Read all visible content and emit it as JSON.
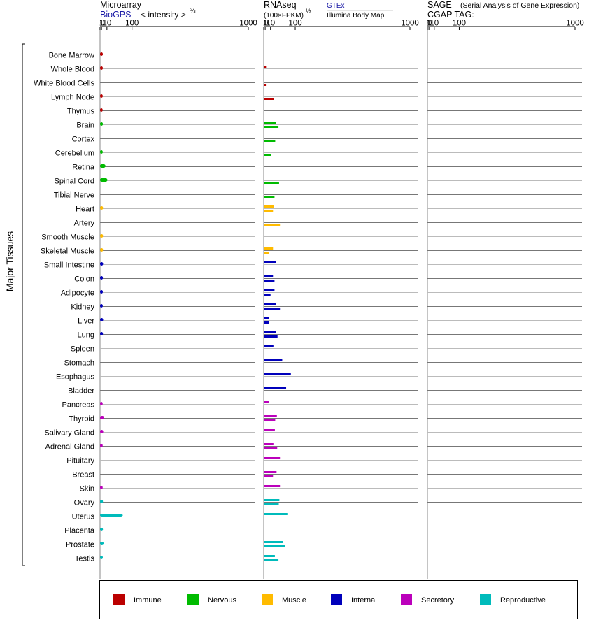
{
  "panels": {
    "microarray": {
      "title": "Microarray",
      "source": "BioGPS",
      "source_color": "#1a1aa6",
      "unit": "< intensity >",
      "exponent": "⅔"
    },
    "rnaseq": {
      "title": "RNAseq",
      "unit": "(100×FPKM)",
      "exponent": "½",
      "source_a": "GTEx",
      "source_a_color": "#1a1aa6",
      "source_b": "Illumina Body Map"
    },
    "sage": {
      "title": "SAGE",
      "subtitle": "(Serial Analysis of Gene Expression)",
      "tag_label": "CGAP TAG:",
      "tag_value": "--"
    }
  },
  "group_label": "Major Tissues",
  "colors": {
    "Immune": "#bb0000",
    "Nervous": "#00bb00",
    "Muscle": "#ffbb00",
    "Internal": "#0000bb",
    "Secretory": "#bb00bb",
    "Reproductive": "#00bbbb"
  },
  "legend": [
    {
      "key": "Immune",
      "label": "Immune"
    },
    {
      "key": "Nervous",
      "label": "Nervous"
    },
    {
      "key": "Muscle",
      "label": "Muscle"
    },
    {
      "key": "Internal",
      "label": "Internal"
    },
    {
      "key": "Secretory",
      "label": "Secretory"
    },
    {
      "key": "Reproductive",
      "label": "Reproductive"
    }
  ],
  "chart_data": {
    "type": "bar",
    "title": "",
    "orientation": "horizontal",
    "x_scale": "power",
    "x_ticks": [
      "0",
      "1",
      "10",
      "100",
      "1000"
    ],
    "x_tick_values": [
      0,
      1,
      10,
      100,
      1000
    ],
    "xlim": [
      0,
      1000
    ],
    "grid": "horizontal",
    "legend_position": "bottom",
    "categories": [
      {
        "name": "Bone Marrow",
        "group": "Immune",
        "microarray": 2.6,
        "gtex": null,
        "ibm": null
      },
      {
        "name": "Whole Blood",
        "group": "Immune",
        "microarray": 2.6,
        "gtex": 2.0,
        "ibm": null
      },
      {
        "name": "White Blood Cells",
        "group": "Immune",
        "microarray": null,
        "gtex": null,
        "ibm": 1.8
      },
      {
        "name": "Lymph Node",
        "group": "Immune",
        "microarray": 2.5,
        "gtex": null,
        "ibm": 18
      },
      {
        "name": "Thymus",
        "group": "Immune",
        "microarray": 2.4,
        "gtex": null,
        "ibm": null
      },
      {
        "name": "Brain",
        "group": "Nervous",
        "microarray": 2.7,
        "gtex": 24,
        "ibm": 32
      },
      {
        "name": "Cortex",
        "group": "Nervous",
        "microarray": null,
        "gtex": null,
        "ibm": 22
      },
      {
        "name": "Cerebellum",
        "group": "Nervous",
        "microarray": 2.5,
        "gtex": null,
        "ibm": 11
      },
      {
        "name": "Retina",
        "group": "Nervous",
        "microarray": 7,
        "gtex": null,
        "ibm": null
      },
      {
        "name": "Spinal Cord",
        "group": "Nervous",
        "microarray": 11,
        "gtex": null,
        "ibm": 34
      },
      {
        "name": "Tibial Nerve",
        "group": "Nervous",
        "microarray": null,
        "gtex": null,
        "ibm": 20
      },
      {
        "name": "Heart",
        "group": "Muscle",
        "microarray": 3.0,
        "gtex": 18,
        "ibm": 16
      },
      {
        "name": "Artery",
        "group": "Muscle",
        "microarray": null,
        "gtex": null,
        "ibm": 37
      },
      {
        "name": "Smooth Muscle",
        "group": "Muscle",
        "microarray": 3.0,
        "gtex": null,
        "ibm": null
      },
      {
        "name": "Skeletal Muscle",
        "group": "Muscle",
        "microarray": 3.0,
        "gtex": 16,
        "ibm": 6.5
      },
      {
        "name": "Small Intestine",
        "group": "Internal",
        "microarray": 3.0,
        "gtex": 24,
        "ibm": null
      },
      {
        "name": "Colon",
        "group": "Internal",
        "microarray": 2.7,
        "gtex": 16,
        "ibm": 20
      },
      {
        "name": "Adipocyte",
        "group": "Internal",
        "microarray": 2.6,
        "gtex": 20,
        "ibm": 10
      },
      {
        "name": "Kidney",
        "group": "Internal",
        "microarray": 2.5,
        "gtex": 25,
        "ibm": 37
      },
      {
        "name": "Liver",
        "group": "Internal",
        "microarray": 3.1,
        "gtex": 7.5,
        "ibm": 7.5
      },
      {
        "name": "Lung",
        "group": "Internal",
        "microarray": 2.8,
        "gtex": 24,
        "ibm": 29
      },
      {
        "name": "Spleen",
        "group": "Internal",
        "microarray": null,
        "gtex": 17,
        "ibm": null
      },
      {
        "name": "Stomach",
        "group": "Internal",
        "microarray": null,
        "gtex": 45,
        "ibm": null
      },
      {
        "name": "Esophagus",
        "group": "Internal",
        "microarray": null,
        "gtex": 80,
        "ibm": null
      },
      {
        "name": "Bladder",
        "group": "Internal",
        "microarray": null,
        "gtex": 60,
        "ibm": null
      },
      {
        "name": "Pancreas",
        "group": "Secretory",
        "microarray": 2.4,
        "gtex": 7,
        "ibm": null
      },
      {
        "name": "Thyroid",
        "group": "Secretory",
        "microarray": 4.5,
        "gtex": 27,
        "ibm": 22
      },
      {
        "name": "Salivary Gland",
        "group": "Secretory",
        "microarray": 3.2,
        "gtex": 21,
        "ibm": null
      },
      {
        "name": "Adrenal Gland",
        "group": "Secretory",
        "microarray": 2.4,
        "gtex": 17,
        "ibm": 28
      },
      {
        "name": "Pituitary",
        "group": "Secretory",
        "microarray": null,
        "gtex": 37,
        "ibm": null
      },
      {
        "name": "Breast",
        "group": "Secretory",
        "microarray": null,
        "gtex": 26,
        "ibm": 16
      },
      {
        "name": "Skin",
        "group": "Secretory",
        "microarray": 2.4,
        "gtex": 37,
        "ibm": null
      },
      {
        "name": "Ovary",
        "group": "Reproductive",
        "microarray": 2.8,
        "gtex": 35,
        "ibm": 33
      },
      {
        "name": "Uterus",
        "group": "Reproductive",
        "microarray": 60,
        "gtex": 65,
        "ibm": null
      },
      {
        "name": "Placenta",
        "group": "Reproductive",
        "microarray": 2.8,
        "gtex": null,
        "ibm": null
      },
      {
        "name": "Prostate",
        "group": "Reproductive",
        "microarray": 3.8,
        "gtex": 48,
        "ibm": 55
      },
      {
        "name": "Testis",
        "group": "Reproductive",
        "microarray": 2.6,
        "gtex": 21,
        "ibm": 32
      }
    ]
  }
}
